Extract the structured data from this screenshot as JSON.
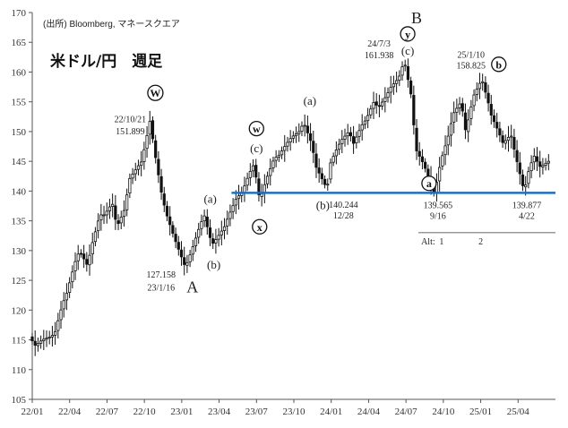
{
  "chart_data": {
    "type": "candlestick-weekly",
    "title": "米ドル/円　週足",
    "source": "(出所) Bloomberg, マネースクエア",
    "ylim": [
      105,
      170
    ],
    "yticks": [
      105,
      110,
      115,
      120,
      125,
      130,
      135,
      140,
      145,
      150,
      155,
      160,
      165,
      170
    ],
    "xlim": [
      "2022-01",
      "2025-07"
    ],
    "xticks": [
      "22/01",
      "22/04",
      "22/07",
      "22/10",
      "23/01",
      "23/04",
      "23/07",
      "23/10",
      "24/01",
      "24/04",
      "24/07",
      "24/10",
      "25/01",
      "25/04"
    ],
    "grid": false,
    "path_points": [
      [
        "2022-01",
        115.5
      ],
      [
        "2022-01-15",
        114
      ],
      [
        "2022-02",
        115
      ],
      [
        "2022-02-20",
        115.5
      ],
      [
        "2022-03",
        116
      ],
      [
        "2022-03-20",
        121
      ],
      [
        "2022-04",
        123
      ],
      [
        "2022-04-20",
        128
      ],
      [
        "2022-05",
        130
      ],
      [
        "2022-05-20",
        127.5
      ],
      [
        "2022-06",
        131
      ],
      [
        "2022-06-20",
        136
      ],
      [
        "2022-07",
        136
      ],
      [
        "2022-07-20",
        138
      ],
      [
        "2022-08",
        134
      ],
      [
        "2022-08-20",
        137
      ],
      [
        "2022-09",
        142
      ],
      [
        "2022-09-20",
        144
      ],
      [
        "2022-10",
        145
      ],
      [
        "2022-10-21",
        151.899
      ],
      [
        "2022-11",
        147
      ],
      [
        "2022-11-20",
        139
      ],
      [
        "2022-12",
        136
      ],
      [
        "2022-12-20",
        132
      ],
      [
        "2023-01-16",
        127.158
      ],
      [
        "2023-02",
        130
      ],
      [
        "2023-02-20",
        134
      ],
      [
        "2023-03",
        136
      ],
      [
        "2023-03-20",
        131
      ],
      [
        "2023-04",
        132
      ],
      [
        "2023-04-20",
        134
      ],
      [
        "2023-05",
        136
      ],
      [
        "2023-05-20",
        139
      ],
      [
        "2023-06",
        139.5
      ],
      [
        "2023-06-20",
        143
      ],
      [
        "2023-07",
        144.5
      ],
      [
        "2023-07-15",
        138.5
      ],
      [
        "2023-08",
        142
      ],
      [
        "2023-08-20",
        145.5
      ],
      [
        "2023-09",
        146
      ],
      [
        "2023-09-20",
        148
      ],
      [
        "2023-10",
        149
      ],
      [
        "2023-10-20",
        150
      ],
      [
        "2023-11",
        151.5
      ],
      [
        "2023-11-20",
        148
      ],
      [
        "2023-12",
        144
      ],
      [
        "2023-12-28",
        140.244
      ],
      [
        "2024-01",
        144
      ],
      [
        "2024-01-20",
        147
      ],
      [
        "2024-02",
        148.5
      ],
      [
        "2024-02-20",
        150
      ],
      [
        "2024-03",
        148
      ],
      [
        "2024-03-20",
        151
      ],
      [
        "2024-04",
        152
      ],
      [
        "2024-04-20",
        155
      ],
      [
        "2024-05",
        154
      ],
      [
        "2024-05-20",
        156
      ],
      [
        "2024-06",
        157.5
      ],
      [
        "2024-06-20",
        159
      ],
      [
        "2024-07-03",
        161.938
      ],
      [
        "2024-07-20",
        156
      ],
      [
        "2024-08",
        147
      ],
      [
        "2024-08-20",
        144.5
      ],
      [
        "2024-09-16",
        139.565
      ],
      [
        "2024-10",
        145
      ],
      [
        "2024-10-20",
        149.5
      ],
      [
        "2024-11",
        153
      ],
      [
        "2024-11-20",
        155
      ],
      [
        "2024-12",
        150
      ],
      [
        "2024-12-20",
        156
      ],
      [
        "2025-01-10",
        158.825
      ],
      [
        "2025-01-25",
        155
      ],
      [
        "2025-02",
        153
      ],
      [
        "2025-02-20",
        150
      ],
      [
        "2025-03",
        148
      ],
      [
        "2025-03-20",
        149.5
      ],
      [
        "2025-04",
        146
      ],
      [
        "2025-04-22",
        139.877
      ],
      [
        "2025-05",
        143
      ],
      [
        "2025-05-15",
        146
      ],
      [
        "2025-06",
        144
      ],
      [
        "2025-06-20",
        145
      ]
    ],
    "horizontal_line": {
      "y": 139.7,
      "from": "2023-05",
      "to": "2025-07",
      "color": "#1f6fc0"
    },
    "alt_line": {
      "y": 133,
      "from": "2024-08",
      "to": "2025-07",
      "label": "Alt:",
      "n1": "1",
      "n2": "2",
      "n1_x": "2024-10",
      "n2_x": "2025-01"
    },
    "annotations": {
      "peak_2210": {
        "date": "22/10/21",
        "value": "151.899",
        "wave": "W",
        "x": "2022-10-21"
      },
      "low_2301": {
        "date": "23/1/16",
        "value": "127.158",
        "wave": "A",
        "x": "2023-01-16"
      },
      "peak_2407": {
        "date": "24/7/3",
        "value": "161.938",
        "wave_big": "B",
        "wave_circ": "y",
        "sub": "(c)",
        "x": "2024-07-03"
      },
      "peak_2501": {
        "date": "25/1/10",
        "value": "158.825",
        "wave": "b",
        "x": "2025-01-10"
      },
      "low_2312": {
        "value": "140.244",
        "date": "12/28",
        "sub": "(b)",
        "x": "2023-12-28"
      },
      "low_2409": {
        "value": "139.565",
        "date": "9/16",
        "wave": "a",
        "color": "#d21f1f",
        "x": "2024-09-16"
      },
      "low_2504": {
        "value": "139.877",
        "date": "4/22",
        "color": "#1f6fc0",
        "x": "2025-04-22"
      },
      "wave_a1": {
        "label": "(a)",
        "x": "2023-03"
      },
      "wave_b1": {
        "label": "(b)",
        "x": "2023-04"
      },
      "wave_w2": {
        "label": "w",
        "sub": "(c)",
        "x": "2023-07"
      },
      "wave_x": {
        "label": "x",
        "x": "2023-07-15"
      },
      "wave_a2": {
        "label": "(a)",
        "x": "2023-11"
      }
    }
  }
}
